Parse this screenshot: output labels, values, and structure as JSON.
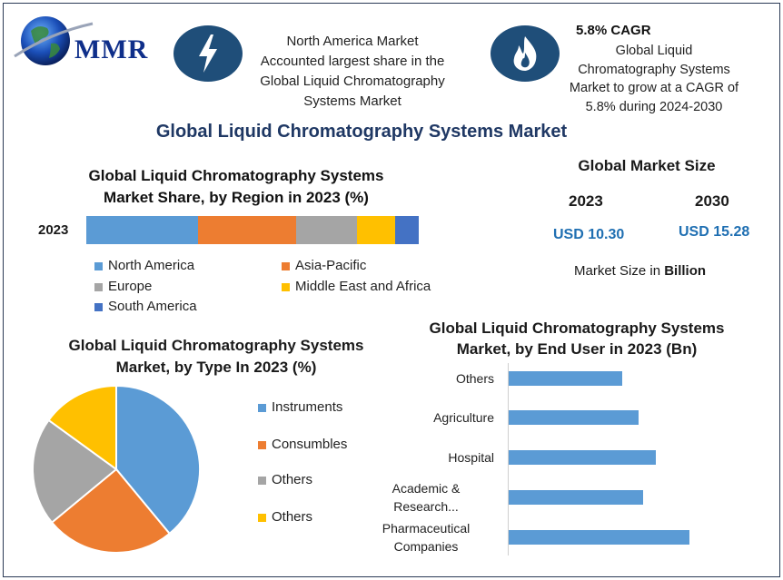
{
  "brand": {
    "name": "MMR"
  },
  "header": {
    "block1": [
      "North America Market",
      "Accounted largest share in the",
      "Global Liquid Chromatography",
      "Systems Market"
    ],
    "block2_title": "5.8% CAGR",
    "block2": [
      "Global Liquid",
      "Chromatography Systems",
      "Market to grow at a CAGR of",
      "5.8% during 2024-2030"
    ],
    "icon1": "lightning-bolt-icon",
    "icon2": "flame-icon"
  },
  "main_title": "Global Liquid Chromatography Systems Market",
  "market_size": {
    "title": "Global Market Size",
    "year1": "2023",
    "year2": "2030",
    "value1": "USD 10.30",
    "value2": "USD 15.28",
    "note_prefix": "Market Size in ",
    "note_bold": "Billion"
  },
  "colors": {
    "north_america": "#5b9bd5",
    "asia_pacific": "#ed7d31",
    "europe": "#a5a5a5",
    "mea": "#ffc000",
    "south_america": "#4472c4",
    "accent": "#1f4e79"
  },
  "chart_data": [
    {
      "type": "bar",
      "orientation": "horizontal-stacked",
      "title": [
        "Global Liquid Chromatography Systems",
        "Market Share, by Region in 2023 (%)"
      ],
      "categories": [
        "2023"
      ],
      "series": [
        {
          "name": "North America",
          "values": [
            33.5
          ],
          "color": "#5b9bd5"
        },
        {
          "name": "Asia-Pacific",
          "values": [
            29.5
          ],
          "color": "#ed7d31"
        },
        {
          "name": "Europe",
          "values": [
            18.5
          ],
          "color": "#a5a5a5"
        },
        {
          "name": "Middle East and Africa",
          "values": [
            11.3
          ],
          "color": "#ffc000"
        },
        {
          "name": "South America",
          "values": [
            7.2
          ],
          "color": "#4472c4"
        }
      ],
      "xlim": [
        0,
        100
      ],
      "legend": "bottom"
    },
    {
      "type": "pie",
      "title": [
        "Global Liquid Chromatography Systems",
        "Market, by Type In 2023 (%)"
      ],
      "labels": [
        "Instruments",
        "Consumbles",
        "Others",
        "Others"
      ],
      "values": [
        39,
        25,
        21,
        15
      ],
      "colors": [
        "#5b9bd5",
        "#ed7d31",
        "#a5a5a5",
        "#ffc000"
      ],
      "legend": "right"
    },
    {
      "type": "bar",
      "orientation": "horizontal",
      "title": [
        "Global Liquid Chromatography Systems",
        "Market, by End User in 2023 (Bn)"
      ],
      "categories": [
        "Others",
        "Agriculture",
        "Hospital",
        "Academic & Research...",
        "Pharmaceutical Companies"
      ],
      "category_lines": [
        [
          "Others"
        ],
        [
          "Agriculture"
        ],
        [
          "Hospital"
        ],
        [
          "Academic &",
          "Research..."
        ],
        [
          "Pharmaceutical",
          "Companies"
        ]
      ],
      "values": [
        1.25,
        1.43,
        1.62,
        1.48,
        1.99
      ],
      "color": "#5b9bd5",
      "xlim": [
        0,
        3
      ],
      "grid": false
    }
  ]
}
